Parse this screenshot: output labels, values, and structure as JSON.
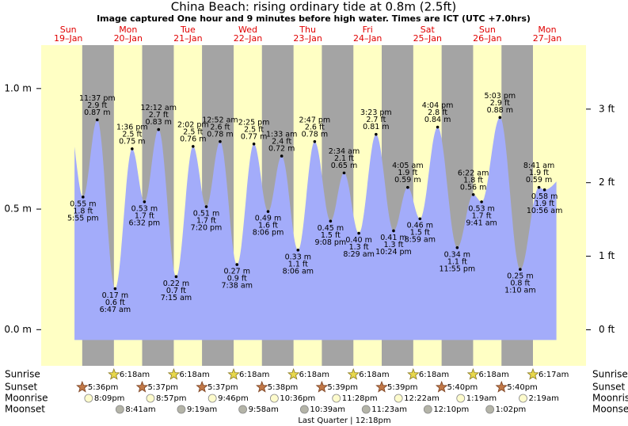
{
  "chart_data": {
    "type": "tide",
    "title": "China Beach: rising  ordinary tide at 0.8m (2.5ft)",
    "subtitle": "Image captured One hour and 9 minutes before high water. Times are ICT (UTC +7.0hrs)",
    "days": [
      {
        "weekday": "Sun",
        "date": "19–Jan"
      },
      {
        "weekday": "Mon",
        "date": "20–Jan"
      },
      {
        "weekday": "Tue",
        "date": "21–Jan"
      },
      {
        "weekday": "Wed",
        "date": "22–Jan"
      },
      {
        "weekday": "Thu",
        "date": "23–Jan"
      },
      {
        "weekday": "Fri",
        "date": "24–Jan"
      },
      {
        "weekday": "Sat",
        "date": "25–Jan"
      },
      {
        "weekday": "Sun",
        "date": "26–Jan"
      },
      {
        "weekday": "Mon",
        "date": "27–Jan"
      }
    ],
    "times": [
      "5:55 pm",
      "11:37 pm",
      "6:47 am",
      "1:36 pm",
      "6:32 pm",
      "12:12 am",
      "7:15 am",
      "2:02 pm",
      "7:20 pm",
      "12:52 am",
      "7:38 am",
      "2:25 pm",
      "8:06 pm",
      "1:33 am",
      "8:06 am",
      "2:47 pm",
      "9:08 pm",
      "2:34 am",
      "8:29 am",
      "3:23 pm",
      "10:24 pm",
      "4:05 am",
      "8:59 am",
      "4:04 pm",
      "11:55 pm",
      "6:22 am",
      "9:41 am",
      "5:03 pm",
      "1:10 am",
      "8:41 am",
      "10:56 am"
    ],
    "values": [
      0.55,
      0.87,
      0.17,
      0.75,
      0.53,
      0.83,
      0.22,
      0.76,
      0.51,
      0.78,
      0.27,
      0.77,
      0.49,
      0.72,
      0.33,
      0.78,
      0.45,
      0.65,
      0.4,
      0.81,
      0.41,
      0.59,
      0.46,
      0.84,
      0.34,
      0.56,
      0.53,
      0.88,
      0.25,
      0.59,
      0.58
    ],
    "value_labels": [
      "0.55 m",
      "0.87 m",
      "0.17 m",
      "0.75 m",
      "0.53 m",
      "0.83 m",
      "0.22 m",
      "0.76 m",
      "0.51 m",
      "0.78 m",
      "0.27 m",
      "0.77 m",
      "0.49 m",
      "0.72 m",
      "0.33 m",
      "0.78 m",
      "0.45 m",
      "0.65 m",
      "0.40 m",
      "0.81 m",
      "0.41 m",
      "0.59 m",
      "0.46 m",
      "0.84 m",
      "0.34 m",
      "0.56 m",
      "0.53 m",
      "0.88 m",
      "0.25 m",
      "0.59 m",
      "0.58 m"
    ],
    "ft_labels": [
      "1.8 ft",
      "2.9 ft",
      "0.6 ft",
      "2.5 ft",
      "1.7 ft",
      "2.7 ft",
      "0.7 ft",
      "2.5 ft",
      "1.7 ft",
      "2.6 ft",
      "0.9 ft",
      "2.5 ft",
      "1.6 ft",
      "2.4 ft",
      "1.1 ft",
      "2.6 ft",
      "1.5 ft",
      "2.1 ft",
      "1.3 ft",
      "2.7 ft",
      "1.3 ft",
      "1.9 ft",
      "1.5 ft",
      "2.8 ft",
      "1.1 ft",
      "1.8 ft",
      "1.7 ft",
      "2.9 ft",
      "0.8 ft",
      "1.9 ft",
      "1.9 ft"
    ],
    "color": "#a3acfa",
    "ylim": [
      -0.15,
      1.18
    ],
    "yticks": [
      {
        "value": 0,
        "label": "0.0 m"
      },
      {
        "value": 0.5,
        "label": "0.5 m"
      },
      {
        "value": 1,
        "label": "1.0 m"
      }
    ],
    "y2lim": [
      -0.49,
      3.87
    ],
    "y2ticks": [
      {
        "value": 0,
        "label": "0 ft"
      },
      {
        "value": 1,
        "label": "1 ft"
      },
      {
        "value": 2,
        "label": "2 ft"
      },
      {
        "value": 3,
        "label": "3 ft"
      }
    ],
    "sunrise": {
      "label": "Sunrise",
      "times": [
        "6:18am",
        "6:18am",
        "6:18am",
        "6:18am",
        "6:18am",
        "6:18am",
        "6:18am",
        "6:17am"
      ]
    },
    "sunset": {
      "label": "Sunset",
      "times": [
        "5:36pm",
        "5:37pm",
        "5:37pm",
        "5:38pm",
        "5:39pm",
        "5:39pm",
        "5:40pm",
        "5:40pm"
      ]
    },
    "moonrise": {
      "label": "Moonrise",
      "times": [
        "8:09pm",
        "8:57pm",
        "9:46pm",
        "10:36pm",
        "11:28pm",
        "12:22am",
        "1:19am",
        "2:19am"
      ]
    },
    "moonset": {
      "label": "Moonset",
      "times": [
        "8:41am",
        "9:19am",
        "9:58am",
        "10:39am",
        "11:23am",
        "12:10pm",
        "1:02pm"
      ]
    },
    "moon_phase": "Last Quarter | 12:18pm"
  }
}
